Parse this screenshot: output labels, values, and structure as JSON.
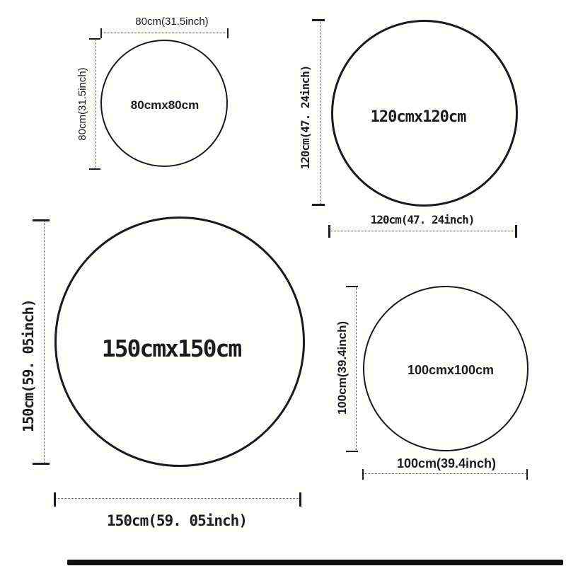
{
  "colors": {
    "background": "#fefefc",
    "stroke": "#1a1a1a",
    "text": "#1c1c1c",
    "bottom_bar": "#111111"
  },
  "sizes": {
    "s80": {
      "center": "80cmx80cm",
      "width": "80cm(31.5inch)",
      "height": "80cm(31.5inch)"
    },
    "s120": {
      "center": "120cmx120cm",
      "width": "120cm(47. 24inch)",
      "height": "120cm(47. 24inch)"
    },
    "s150": {
      "center": "150cmx150cm",
      "width": "150cm(59. 05inch)",
      "height": "150cm(59. 05inch)"
    },
    "s100": {
      "center": "100cmx100cm",
      "width": "100cm(39.4inch)",
      "height": "100cm(39.4inch)"
    }
  }
}
